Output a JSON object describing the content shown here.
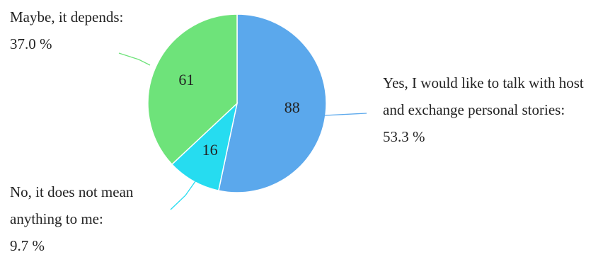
{
  "chart_data": {
    "type": "pie",
    "title": "",
    "slices": [
      {
        "label_lines": [
          "Yes, I would like to talk with host",
          "and exchange personal stories:"
        ],
        "value": 88,
        "percent_text": "53.3 %",
        "color": "#5ba8ec"
      },
      {
        "label_lines": [
          "No, it does not mean",
          "anything to me:"
        ],
        "value": 16,
        "percent_text": "9.7 %",
        "color": "#26dcf0"
      },
      {
        "label_lines": [
          "Maybe, it depends:"
        ],
        "value": 61,
        "percent_text": "37.0 %",
        "color": "#6ee37a"
      }
    ],
    "start_angle": "12 o'clock",
    "direction": "clockwise",
    "legend": "none",
    "grid": false
  }
}
